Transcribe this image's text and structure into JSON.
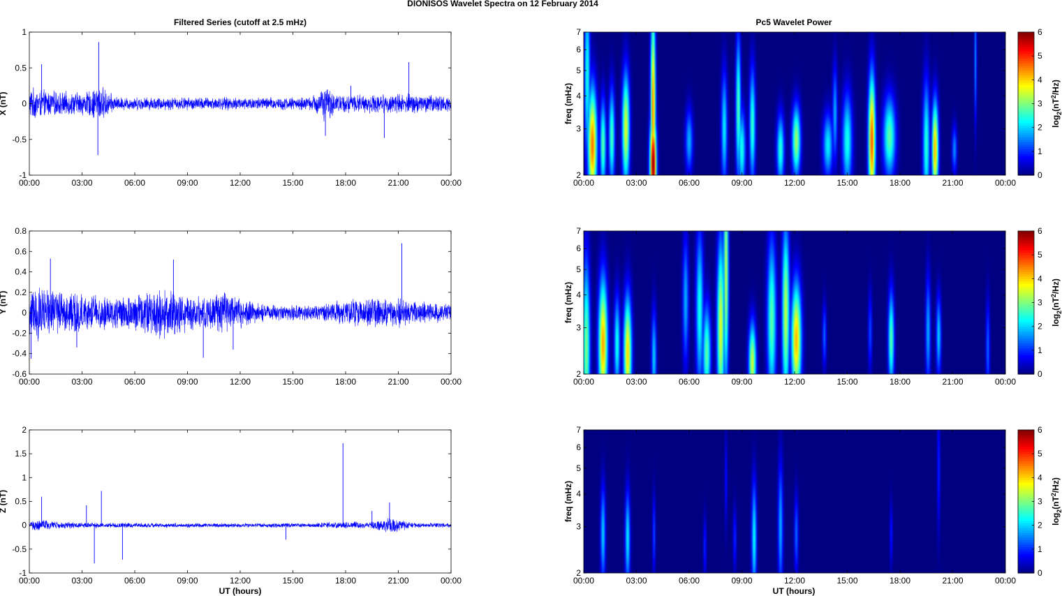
{
  "figure": {
    "title": "DIONISOS Wavelet Spectra on 12 February  2014",
    "left_title": "Filtered Series (cutoff at 2.5 mHz)",
    "right_title": "Pc5 Wavelet Power",
    "xlabel": "UT (hours)"
  },
  "chart_data": [
    {
      "type": "line",
      "panel": "X",
      "ylabel": "X (nT)",
      "xlim": [
        0,
        24
      ],
      "ylim": [
        -1,
        1
      ],
      "xticks": [
        "00:00",
        "03:00",
        "06:00",
        "09:00",
        "12:00",
        "15:00",
        "18:00",
        "21:00",
        "00:00"
      ],
      "yticks": [
        "-1",
        "-0.5",
        "0",
        "0.5",
        "1"
      ],
      "line_color": "#0000ff",
      "envelope": [
        [
          0,
          0.25
        ],
        [
          1,
          0.2
        ],
        [
          2,
          0.18
        ],
        [
          3,
          0.18
        ],
        [
          3.5,
          0.2
        ],
        [
          4,
          0.3
        ],
        [
          4.5,
          0.18
        ],
        [
          5,
          0.1
        ],
        [
          7,
          0.1
        ],
        [
          9,
          0.1
        ],
        [
          12,
          0.1
        ],
        [
          14,
          0.1
        ],
        [
          16,
          0.1
        ],
        [
          16.8,
          0.28
        ],
        [
          17.5,
          0.14
        ],
        [
          19,
          0.14
        ],
        [
          20,
          0.14
        ],
        [
          21,
          0.16
        ],
        [
          22,
          0.15
        ],
        [
          24,
          0.12
        ]
      ],
      "spikes": [
        [
          0.7,
          0.55
        ],
        [
          3.95,
          0.86
        ],
        [
          3.9,
          -0.72
        ],
        [
          16.85,
          -0.45
        ],
        [
          21.6,
          0.58
        ],
        [
          20.2,
          -0.48
        ],
        [
          18.3,
          0.25
        ]
      ]
    },
    {
      "type": "line",
      "panel": "Y",
      "ylabel": "Y (nT)",
      "xlim": [
        0,
        24
      ],
      "ylim": [
        -0.6,
        0.8
      ],
      "xticks": [
        "00:00",
        "03:00",
        "06:00",
        "09:00",
        "12:00",
        "15:00",
        "18:00",
        "21:00",
        "00:00"
      ],
      "yticks": [
        "-0.6",
        "-0.4",
        "-0.2",
        "0",
        "0.2",
        "0.4",
        "0.6",
        "0.8"
      ],
      "line_color": "#0000ff",
      "envelope": [
        [
          0,
          0.3
        ],
        [
          1,
          0.28
        ],
        [
          2,
          0.25
        ],
        [
          3,
          0.2
        ],
        [
          4,
          0.18
        ],
        [
          5,
          0.18
        ],
        [
          6,
          0.2
        ],
        [
          7,
          0.25
        ],
        [
          8,
          0.28
        ],
        [
          9,
          0.2
        ],
        [
          10,
          0.18
        ],
        [
          11,
          0.22
        ],
        [
          12,
          0.18
        ],
        [
          13,
          0.1
        ],
        [
          15,
          0.08
        ],
        [
          17,
          0.1
        ],
        [
          18,
          0.14
        ],
        [
          19,
          0.16
        ],
        [
          20,
          0.16
        ],
        [
          21,
          0.16
        ],
        [
          22,
          0.12
        ],
        [
          24,
          0.1
        ]
      ],
      "spikes": [
        [
          1.2,
          0.53
        ],
        [
          0.1,
          -0.45
        ],
        [
          8.2,
          0.52
        ],
        [
          9.9,
          -0.44
        ],
        [
          21.2,
          0.68
        ],
        [
          2.7,
          -0.34
        ],
        [
          11.6,
          -0.36
        ]
      ]
    },
    {
      "type": "line",
      "panel": "Z",
      "ylabel": "Z (nT)",
      "xlim": [
        0,
        24
      ],
      "ylim": [
        -1,
        2
      ],
      "xticks": [
        "00:00",
        "03:00",
        "06:00",
        "09:00",
        "12:00",
        "15:00",
        "18:00",
        "21:00",
        "00:00"
      ],
      "yticks": [
        "-1",
        "-0.5",
        "0",
        "0.5",
        "1",
        "1.5",
        "2"
      ],
      "line_color": "#0000ff",
      "envelope": [
        [
          0,
          0.08
        ],
        [
          0.6,
          0.15
        ],
        [
          1.5,
          0.08
        ],
        [
          4,
          0.06
        ],
        [
          8,
          0.05
        ],
        [
          12,
          0.05
        ],
        [
          16,
          0.05
        ],
        [
          17.8,
          0.08
        ],
        [
          19.5,
          0.08
        ],
        [
          20.5,
          0.18
        ],
        [
          21.2,
          0.12
        ],
        [
          22,
          0.06
        ],
        [
          24,
          0.05
        ]
      ],
      "spikes": [
        [
          0.7,
          0.6
        ],
        [
          3.7,
          -0.8
        ],
        [
          3.25,
          0.42
        ],
        [
          4.1,
          0.72
        ],
        [
          5.3,
          -0.72
        ],
        [
          17.85,
          1.72
        ],
        [
          14.6,
          -0.3
        ],
        [
          19.5,
          0.3
        ],
        [
          20.5,
          0.48
        ]
      ]
    },
    {
      "type": "heatmap",
      "panel": "X-wavelet",
      "ylabel": "freq (mHz)",
      "ylog": true,
      "xlim": [
        0,
        24
      ],
      "ylim": [
        2,
        7
      ],
      "xticks": [
        "00:00",
        "03:00",
        "06:00",
        "09:00",
        "12:00",
        "15:00",
        "18:00",
        "21:00",
        "00:00"
      ],
      "yticks": [
        "2",
        "3",
        "4",
        "5",
        "6",
        "7"
      ],
      "colorbar_label": "log2(nT^2/Hz)",
      "clim": [
        0,
        6
      ],
      "colorbar_ticks": [
        "0",
        "1",
        "2",
        "3",
        "4",
        "5",
        "6"
      ],
      "blobs": [
        [
          0.2,
          4.8,
          0.12,
          0.55,
          2.4
        ],
        [
          0.5,
          2.6,
          0.18,
          0.35,
          4.6
        ],
        [
          1.1,
          2.6,
          0.12,
          0.28,
          2.8
        ],
        [
          1.6,
          2.8,
          0.12,
          0.3,
          2.7
        ],
        [
          2.4,
          3.0,
          0.15,
          0.35,
          3.6
        ],
        [
          3.95,
          2.2,
          0.13,
          0.3,
          6.0
        ],
        [
          3.95,
          3.6,
          0.1,
          0.6,
          4.5
        ],
        [
          3.95,
          6.5,
          0.06,
          0.35,
          2.8
        ],
        [
          6.0,
          2.7,
          0.15,
          0.2,
          1.8
        ],
        [
          8.0,
          3.0,
          0.12,
          0.35,
          2.2
        ],
        [
          8.8,
          3.6,
          0.1,
          0.45,
          2.8
        ],
        [
          9.0,
          2.5,
          0.15,
          0.25,
          2.4
        ],
        [
          9.6,
          3.1,
          0.12,
          0.35,
          2.6
        ],
        [
          11.2,
          2.5,
          0.15,
          0.22,
          2.5
        ],
        [
          12.1,
          2.7,
          0.17,
          0.22,
          3.2
        ],
        [
          13.9,
          2.6,
          0.2,
          0.2,
          2.2
        ],
        [
          14.3,
          3.4,
          0.1,
          0.3,
          1.8
        ],
        [
          15.0,
          2.7,
          0.2,
          0.3,
          2.4
        ],
        [
          16.4,
          2.7,
          0.14,
          0.4,
          4.8
        ],
        [
          17.4,
          2.8,
          0.25,
          0.25,
          2.8
        ],
        [
          19.5,
          2.6,
          0.14,
          0.4,
          2.5
        ],
        [
          20.0,
          2.5,
          0.13,
          0.3,
          4.2
        ],
        [
          21.1,
          2.5,
          0.1,
          0.15,
          1.6
        ],
        [
          22.3,
          5.5,
          0.05,
          0.4,
          1.6
        ]
      ]
    },
    {
      "type": "heatmap",
      "panel": "Y-wavelet",
      "ylabel": "freq (mHz)",
      "ylog": true,
      "xlim": [
        0,
        24
      ],
      "ylim": [
        2,
        7
      ],
      "xticks": [
        "00:00",
        "03:00",
        "06:00",
        "09:00",
        "12:00",
        "15:00",
        "18:00",
        "21:00",
        "00:00"
      ],
      "yticks": [
        "2",
        "3",
        "4",
        "5",
        "6",
        "7"
      ],
      "colorbar_label": "log2(nT^2/Hz)",
      "clim": [
        0,
        6
      ],
      "colorbar_ticks": [
        "0",
        "1",
        "2",
        "3",
        "4",
        "5",
        "6"
      ],
      "blobs": [
        [
          0.15,
          2.5,
          0.15,
          0.55,
          3.0
        ],
        [
          1.1,
          2.6,
          0.18,
          0.4,
          4.3
        ],
        [
          1.9,
          2.6,
          0.12,
          0.3,
          2.4
        ],
        [
          2.5,
          2.4,
          0.16,
          0.35,
          4.0
        ],
        [
          4.0,
          2.3,
          0.1,
          0.3,
          2.0
        ],
        [
          5.8,
          3.8,
          0.12,
          0.4,
          1.8
        ],
        [
          6.6,
          3.5,
          0.15,
          0.5,
          2.4
        ],
        [
          7.0,
          2.4,
          0.16,
          0.3,
          2.8
        ],
        [
          7.8,
          3.0,
          0.15,
          0.55,
          3.6
        ],
        [
          8.1,
          4.8,
          0.1,
          0.7,
          3.4
        ],
        [
          9.6,
          2.2,
          0.15,
          0.25,
          3.5
        ],
        [
          10.7,
          3.2,
          0.18,
          0.5,
          2.8
        ],
        [
          11.5,
          3.4,
          0.15,
          0.55,
          3.4
        ],
        [
          12.1,
          2.7,
          0.2,
          0.35,
          4.2
        ],
        [
          13.7,
          2.8,
          0.08,
          0.2,
          1.4
        ],
        [
          16.3,
          2.9,
          0.08,
          0.25,
          1.2
        ],
        [
          17.5,
          2.7,
          0.12,
          0.3,
          2.8
        ],
        [
          19.6,
          2.9,
          0.1,
          0.35,
          1.8
        ],
        [
          20.2,
          2.8,
          0.1,
          0.25,
          2.0
        ],
        [
          23.0,
          2.5,
          0.08,
          0.3,
          1.4
        ]
      ]
    },
    {
      "type": "heatmap",
      "panel": "Z-wavelet",
      "ylabel": "freq (mHz)",
      "ylog": true,
      "xlim": [
        0,
        24
      ],
      "ylim": [
        2,
        7
      ],
      "xticks": [
        "00:00",
        "03:00",
        "06:00",
        "09:00",
        "12:00",
        "15:00",
        "18:00",
        "21:00",
        "00:00"
      ],
      "yticks": [
        "2",
        "3",
        "4",
        "5",
        "6",
        "7"
      ],
      "colorbar_label": "log2(nT^2/Hz)",
      "clim": [
        0,
        6
      ],
      "colorbar_ticks": [
        "0",
        "1",
        "2",
        "3",
        "4",
        "5",
        "6"
      ],
      "blobs": [
        [
          1.1,
          2.8,
          0.1,
          0.3,
          2.0
        ],
        [
          2.5,
          2.7,
          0.1,
          0.3,
          2.2
        ],
        [
          4.0,
          2.8,
          0.06,
          0.25,
          1.2
        ],
        [
          6.9,
          2.5,
          0.06,
          0.2,
          1.0
        ],
        [
          8.1,
          4.5,
          0.05,
          0.3,
          0.9
        ],
        [
          8.6,
          2.7,
          0.07,
          0.2,
          1.0
        ],
        [
          9.7,
          2.7,
          0.1,
          0.35,
          2.3
        ],
        [
          11.2,
          3.0,
          0.1,
          0.4,
          1.8
        ],
        [
          12.1,
          2.8,
          0.08,
          0.25,
          1.4
        ],
        [
          17.5,
          2.8,
          0.06,
          0.2,
          0.9
        ],
        [
          20.2,
          5.0,
          0.06,
          0.4,
          1.0
        ]
      ]
    }
  ]
}
